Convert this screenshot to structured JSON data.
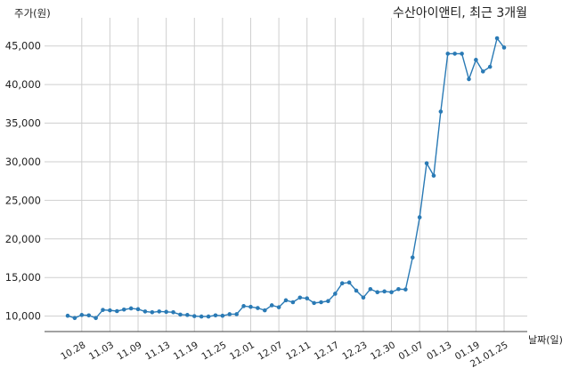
{
  "chart_data": {
    "type": "line",
    "title": "수산아이앤티, 최근 3개월",
    "ylabel": "주가(원)",
    "xlabel": "날짜(일)",
    "ylim": [
      8000,
      47500
    ],
    "yticks": [
      10000,
      15000,
      20000,
      25000,
      30000,
      35000,
      40000,
      45000
    ],
    "ytick_labels": [
      "10,000",
      "15,000",
      "20,000",
      "25,000",
      "30,000",
      "35,000",
      "40,000",
      "45,000"
    ],
    "xtick_labels": [
      "10.28",
      "11.03",
      "11.09",
      "11.13",
      "11.19",
      "11.25",
      "12.01",
      "12.07",
      "12.11",
      "12.17",
      "12.23",
      "12.30",
      "01.07",
      "01.13",
      "01.19",
      "21.01.25"
    ],
    "xtick_index": [
      2,
      6,
      10,
      14,
      18,
      22,
      26,
      30,
      34,
      38,
      42,
      46,
      50,
      54,
      58,
      62
    ],
    "grid": true,
    "color": "#2a7ab5",
    "series": [
      {
        "values": [
          10050,
          9750,
          10150,
          10100,
          9750,
          10800,
          10750,
          10650,
          10850,
          11000,
          10900,
          10600,
          10500,
          10600,
          10550,
          10500,
          10200,
          10150,
          10000,
          9950,
          9950,
          10100,
          10050,
          10250,
          10250,
          11300,
          11200,
          11050,
          10750,
          11400,
          11150,
          12050,
          11800,
          12400,
          12300,
          11700,
          11800,
          11950,
          12900,
          14250,
          14350,
          13300,
          12400,
          13500,
          13100,
          13200,
          13100,
          13500,
          13450,
          17600,
          22800,
          29800,
          28200,
          36500,
          44000,
          44000,
          44000,
          40700,
          43200,
          41700,
          42300,
          46000,
          44800
        ]
      }
    ]
  }
}
